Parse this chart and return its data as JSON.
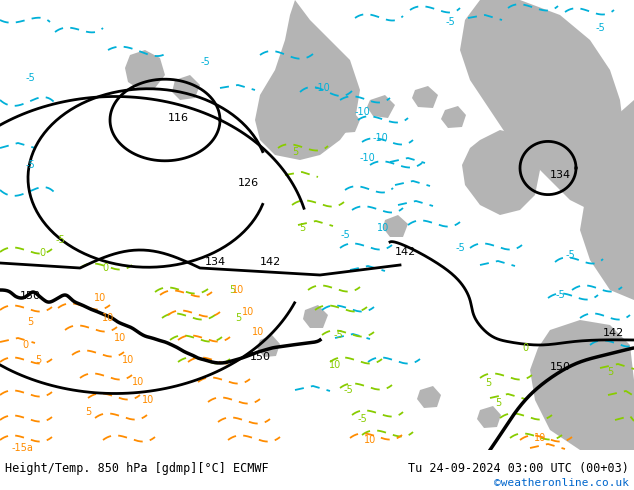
{
  "title_left": "Height/Temp. 850 hPa [gdmp][°C] ECMWF",
  "title_right": "Tu 24-09-2024 03:00 UTC (00+03)",
  "credit": "©weatheronline.co.uk",
  "bg_color": "#c8c8c8",
  "map_bg_light_green": "#c8e6a0",
  "map_bg_gray": "#b4b4b4",
  "fig_width": 6.34,
  "fig_height": 4.9,
  "dpi": 100,
  "credit_color": "#0066cc"
}
